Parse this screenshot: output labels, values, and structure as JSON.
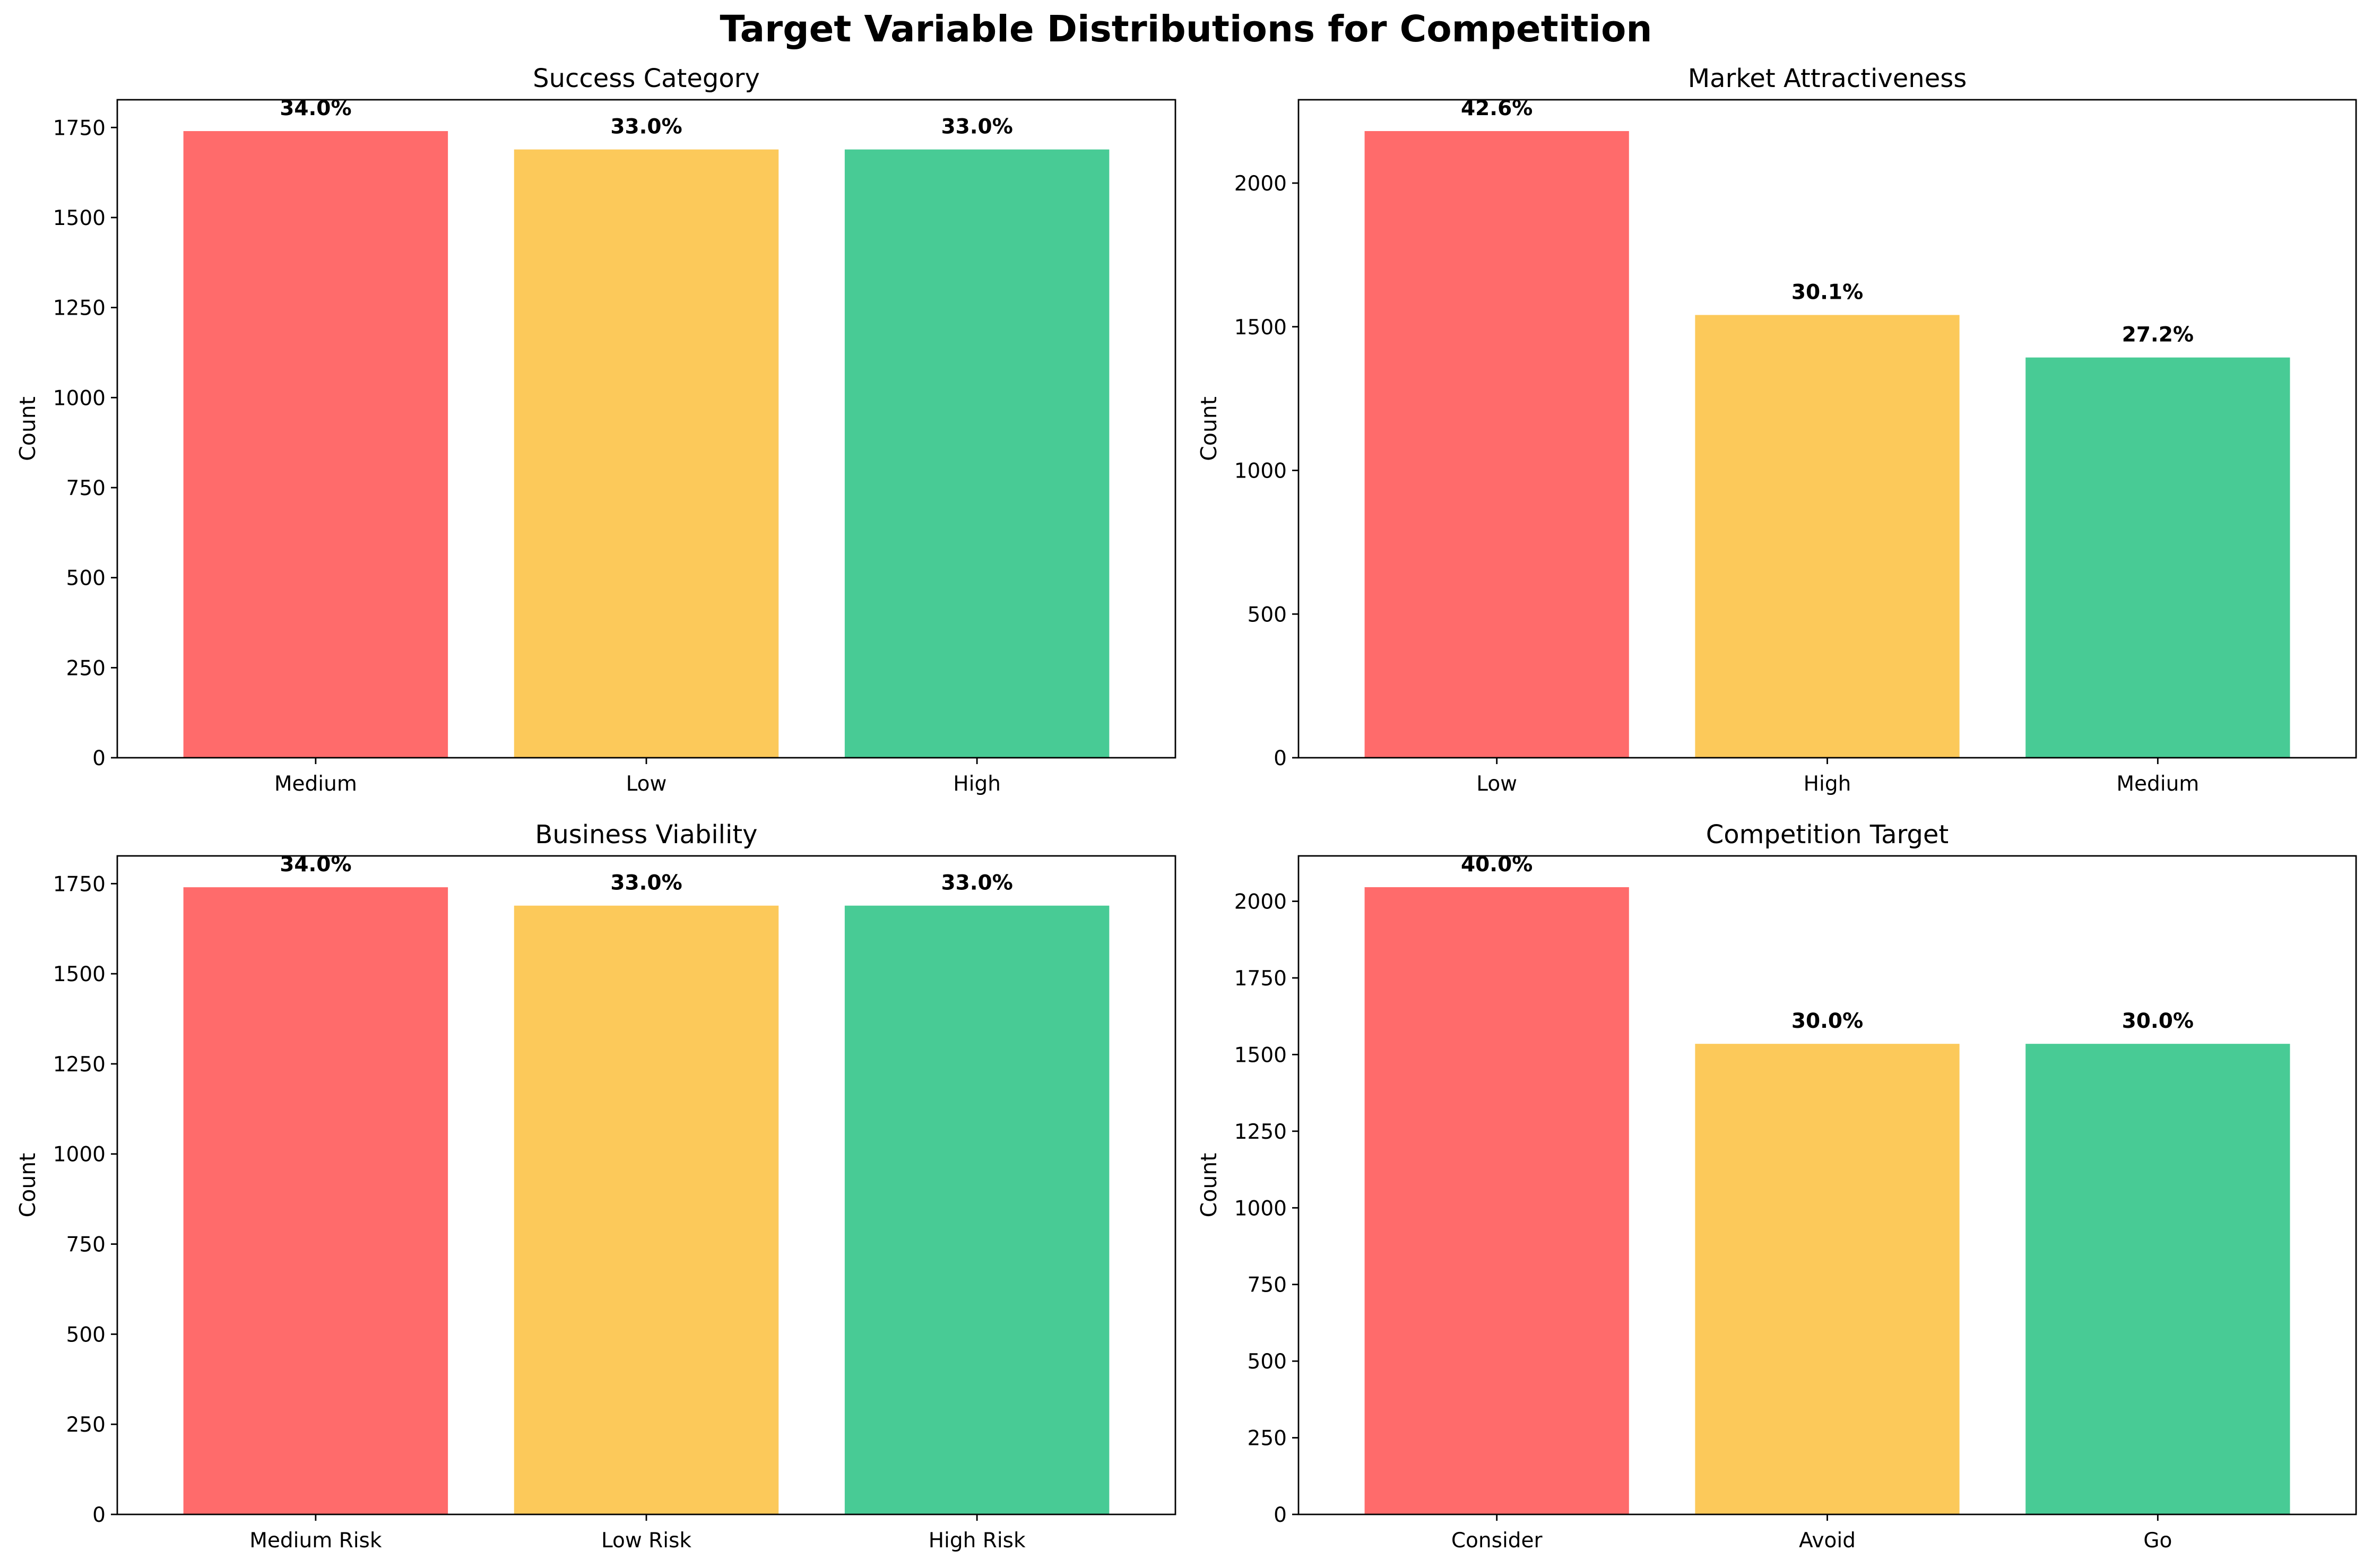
{
  "figure": {
    "title": "Target Variable Distributions for Competition"
  },
  "chart_data": [
    {
      "type": "bar",
      "title": "Success Category",
      "xlabel": "",
      "ylabel": "Count",
      "categories": [
        "Medium",
        "Low",
        "High"
      ],
      "values": [
        1740,
        1689,
        1689
      ],
      "labels": [
        "34.0%",
        "33.0%",
        "33.0%"
      ],
      "colors": [
        "#ff6b6b",
        "#fcc95a",
        "#48cb95"
      ],
      "ylim": [
        0,
        1827
      ],
      "yticks": [
        0,
        250,
        500,
        750,
        1000,
        1250,
        1500,
        1750
      ],
      "grid": false,
      "legend": false
    },
    {
      "type": "bar",
      "title": "Market Attractiveness",
      "xlabel": "",
      "ylabel": "Count",
      "categories": [
        "Low",
        "High",
        "Medium"
      ],
      "values": [
        2181,
        1541,
        1393
      ],
      "labels": [
        "42.6%",
        "30.1%",
        "27.2%"
      ],
      "colors": [
        "#ff6b6b",
        "#fcc95a",
        "#48cb95"
      ],
      "ylim": [
        0,
        2290
      ],
      "yticks": [
        0,
        500,
        1000,
        1500,
        2000
      ],
      "grid": false,
      "legend": false
    },
    {
      "type": "bar",
      "title": "Business Viability",
      "xlabel": "",
      "ylabel": "Count",
      "categories": [
        "Medium Risk",
        "Low Risk",
        "High Risk"
      ],
      "values": [
        1740,
        1689,
        1689
      ],
      "labels": [
        "34.0%",
        "33.0%",
        "33.0%"
      ],
      "colors": [
        "#ff6b6b",
        "#fcc95a",
        "#48cb95"
      ],
      "ylim": [
        0,
        1827
      ],
      "yticks": [
        0,
        250,
        500,
        750,
        1000,
        1250,
        1500,
        1750
      ],
      "grid": false,
      "legend": false
    },
    {
      "type": "bar",
      "title": "Competition Target",
      "xlabel": "",
      "ylabel": "Count",
      "categories": [
        "Consider",
        "Avoid",
        "Go"
      ],
      "values": [
        2046,
        1535,
        1535
      ],
      "labels": [
        "40.0%",
        "30.0%",
        "30.0%"
      ],
      "colors": [
        "#ff6b6b",
        "#fcc95a",
        "#48cb95"
      ],
      "ylim": [
        0,
        2148
      ],
      "yticks": [
        0,
        250,
        500,
        750,
        1000,
        1250,
        1500,
        1750,
        2000
      ],
      "grid": false,
      "legend": false
    }
  ]
}
